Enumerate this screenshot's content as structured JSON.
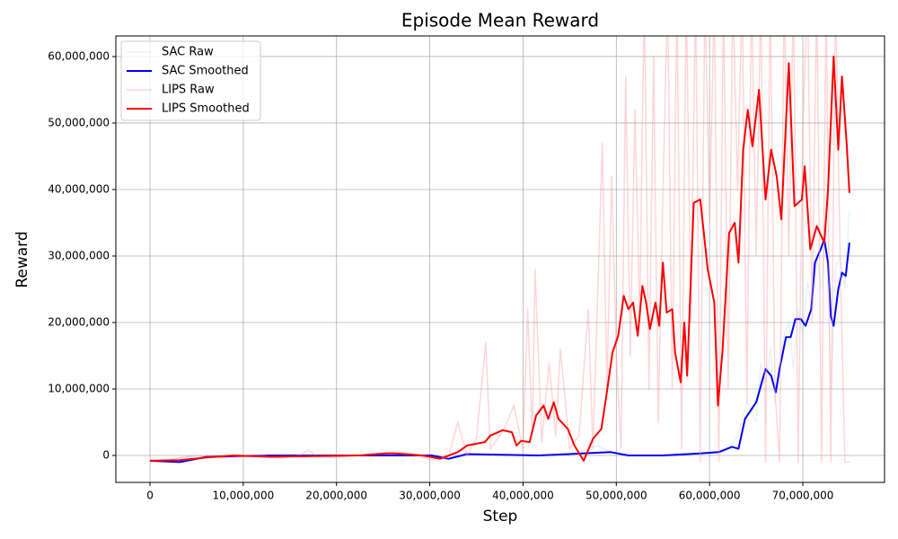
{
  "chart_data": {
    "type": "line",
    "title": "Episode Mean Reward",
    "xlabel": "Step",
    "ylabel": "Reward",
    "xlim": [
      -3660000,
      78760000
    ],
    "ylim": [
      -4050000,
      63100000
    ],
    "xticks": [
      0,
      {
        "value": 10000000,
        "label": "10,000,000"
      },
      {
        "value": 20000000,
        "label": "20,000,000"
      },
      {
        "value": 30000000,
        "label": "30,000,000"
      },
      {
        "value": 40000000,
        "label": "40,000,000"
      },
      {
        "value": 50000000,
        "label": "50,000,000"
      },
      {
        "value": 60000000,
        "label": "60,000,000"
      },
      {
        "value": 70000000,
        "label": "70,000,000"
      }
    ],
    "yticks": [
      0,
      {
        "value": 10000000,
        "label": "10,000,000"
      },
      {
        "value": 20000000,
        "label": "20,000,000"
      },
      {
        "value": 30000000,
        "label": "30,000,000"
      },
      {
        "value": 40000000,
        "label": "40,000,000"
      },
      {
        "value": 50000000,
        "label": "50,000,000"
      },
      {
        "value": 60000000,
        "label": "60,000,000"
      }
    ],
    "grid": true,
    "legend": "upper left",
    "series": [
      {
        "name": "SAC Raw",
        "color": "#add8e6",
        "opacity": 0.3,
        "width": 1.5,
        "x": [
          0,
          5000000,
          10000000,
          15000000,
          20000000,
          25000000,
          30000000,
          32000000,
          35000000,
          40000000,
          45000000,
          48000000,
          50000000,
          55000000,
          60000000,
          62000000,
          63000000,
          64000000,
          65000000,
          65500000,
          66000000,
          66500000,
          67000000,
          68000000,
          68500000,
          69000000,
          69500000,
          70000000,
          70500000,
          71000000,
          71500000,
          72000000,
          72500000,
          73000000,
          73500000,
          74000000,
          74500000,
          75000000
        ],
        "values": [
          -1000000,
          0,
          0,
          0,
          0,
          0,
          0,
          -500000,
          200000,
          0,
          0,
          1500000,
          0,
          0,
          500000,
          1000000,
          3000000,
          8000000,
          5000000,
          14000000,
          11000000,
          16000000,
          8000000,
          18000000,
          20000000,
          13000000,
          22000000,
          18000000,
          26000000,
          22000000,
          30000000,
          25000000,
          36000000,
          10000000,
          28000000,
          30000000,
          25000000,
          37000000
        ]
      },
      {
        "name": "SAC Smoothed",
        "color": "#0000ff",
        "opacity": 1,
        "width": 2,
        "x": [
          0,
          3200000,
          6100000,
          12800000,
          22500000,
          30200000,
          32000000,
          34000000,
          41700000,
          49400000,
          51300000,
          55000000,
          59000000,
          61000000,
          62400000,
          63100000,
          63800000,
          65000000,
          66000000,
          66600000,
          67100000,
          67500000,
          68200000,
          68700000,
          69200000,
          69800000,
          70300000,
          70900000,
          71300000,
          71900000,
          72300000,
          72700000,
          73000000,
          73300000,
          73800000,
          74200000,
          74600000,
          75000000
        ],
        "values": [
          -800000,
          -1000000,
          -200000,
          0,
          0,
          0,
          -500000,
          200000,
          0,
          500000,
          0,
          0,
          300000,
          500000,
          1300000,
          1000000,
          5500000,
          8000000,
          13000000,
          12000000,
          9500000,
          13000000,
          17800000,
          17800000,
          20500000,
          20500000,
          19500000,
          22000000,
          29000000,
          31000000,
          32500000,
          29000000,
          21000000,
          19500000,
          25000000,
          27500000,
          27000000,
          32000000
        ]
      },
      {
        "name": "LIPS Raw",
        "color": "#ff9999",
        "opacity": 0.4,
        "width": 1.5,
        "x": [
          0,
          2000000,
          4000000,
          6000000,
          8000000,
          10000000,
          12000000,
          14000000,
          16000000,
          17000000,
          18000000,
          20000000,
          22000000,
          24000000,
          26000000,
          28000000,
          30000000,
          32000000,
          33000000,
          34000000,
          35000000,
          36000000,
          36500000,
          38000000,
          39000000,
          40000000,
          40500000,
          41000000,
          41300000,
          42000000,
          42800000,
          43500000,
          44000000,
          45000000,
          46000000,
          47000000,
          47500000,
          48500000,
          49000000,
          49500000,
          50000000,
          50500000,
          51000000,
          51500000,
          52000000,
          52500000,
          53000000,
          53500000,
          54000000,
          54500000,
          55000000,
          55500000,
          56000000,
          56500000,
          57000000,
          57500000,
          58000000,
          58500000,
          59000000,
          59500000,
          60000000,
          60500000,
          61000000,
          61500000,
          62000000,
          62500000,
          63000000,
          63500000,
          64000000,
          64500000,
          65000000,
          65500000,
          66000000,
          66500000,
          67000000,
          67500000,
          68000000,
          68500000,
          69000000,
          69500000,
          70000000,
          70500000,
          71000000,
          71500000,
          72000000,
          72500000,
          73000000,
          73500000,
          74000000,
          74500000,
          75000000
        ],
        "values": [
          -800000,
          -600000,
          -200000,
          0,
          -400000,
          -200000,
          0,
          -400000,
          0,
          800000,
          -200000,
          -300000,
          0,
          300000,
          500000,
          300000,
          -600000,
          -300000,
          5000000,
          0,
          2500000,
          17000000,
          1000000,
          4000000,
          7500000,
          1000000,
          22000000,
          3000000,
          28000000,
          2000000,
          14000000,
          3000000,
          16000000,
          1000000,
          3000000,
          22000000,
          1000000,
          47000000,
          10000000,
          42000000,
          15000000,
          1000000,
          57000000,
          15000000,
          52000000,
          20000000,
          70000000,
          10000000,
          60000000,
          5000000,
          39000000,
          70000000,
          10000000,
          70000000,
          1000000,
          70000000,
          20000000,
          70000000,
          -1000000,
          70000000,
          35000000,
          70000000,
          -1000000,
          70000000,
          10000000,
          70000000,
          40000000,
          70000000,
          8000000,
          70000000,
          30000000,
          70000000,
          -1000000,
          70000000,
          10000000,
          -1000000,
          70000000,
          30000000,
          70000000,
          -1000000,
          49000000,
          70000000,
          20000000,
          70000000,
          -1000000,
          70000000,
          -1000000,
          70000000,
          30000000,
          -1000000,
          -1000000
        ]
      },
      {
        "name": "LIPS Smoothed",
        "color": "#ff0000",
        "opacity": 1,
        "width": 2,
        "x": [
          0,
          3200000,
          6100000,
          9000000,
          12800000,
          17600000,
          22500000,
          25300000,
          26300000,
          29200000,
          31100000,
          33000000,
          34000000,
          35900000,
          36500000,
          37800000,
          38800000,
          39300000,
          39800000,
          40700000,
          41400000,
          42200000,
          42700000,
          43300000,
          43800000,
          44800000,
          45500000,
          46500000,
          47500000,
          48400000,
          48900000,
          49600000,
          50200000,
          50800000,
          51300000,
          51800000,
          52300000,
          52800000,
          53200000,
          53600000,
          54200000,
          54600000,
          55000000,
          55400000,
          56000000,
          56300000,
          56900000,
          57300000,
          57600000,
          58300000,
          59000000,
          59800000,
          60500000,
          60900000,
          61400000,
          62100000,
          62700000,
          63100000,
          63600000,
          64100000,
          64600000,
          65300000,
          66000000,
          66600000,
          67200000,
          67700000,
          68500000,
          69100000,
          69900000,
          70200000,
          70800000,
          71500000,
          72300000,
          72700000,
          73300000,
          73800000,
          74200000,
          74700000,
          75000000
        ],
        "values": [
          -800000,
          -700000,
          -300000,
          0,
          -200000,
          -100000,
          0,
          300000,
          300000,
          0,
          -500000,
          500000,
          1500000,
          2000000,
          3000000,
          3800000,
          3500000,
          1500000,
          2200000,
          2000000,
          6000000,
          7500000,
          5500000,
          8000000,
          5500000,
          4000000,
          1500000,
          -800000,
          2500000,
          4000000,
          8700000,
          15500000,
          18000000,
          24000000,
          22000000,
          23000000,
          18000000,
          25500000,
          23000000,
          19000000,
          23000000,
          19500000,
          29000000,
          21500000,
          22000000,
          15500000,
          11000000,
          20000000,
          12000000,
          38000000,
          38500000,
          28000000,
          23000000,
          7500000,
          16000000,
          33500000,
          35000000,
          29000000,
          46000000,
          52000000,
          46500000,
          55000000,
          38500000,
          46000000,
          42000000,
          35500000,
          59000000,
          37500000,
          38500000,
          43500000,
          31000000,
          34500000,
          32000000,
          40000000,
          60000000,
          46000000,
          57000000,
          47000000,
          39500000
        ]
      }
    ]
  }
}
